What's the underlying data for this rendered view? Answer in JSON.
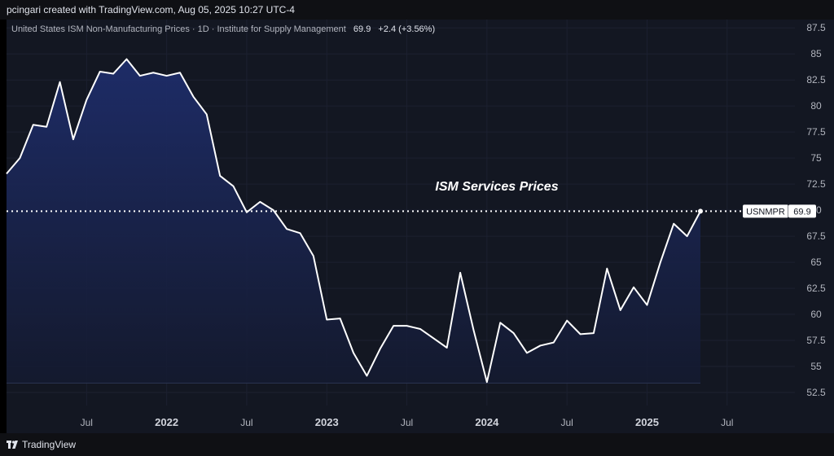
{
  "header": {
    "attribution": "pcingari created with TradingView.com, Aug 05, 2025 10:27 UTC-4"
  },
  "legend": {
    "title": "United States ISM Non-Manufacturing Prices · 1D · Institute for Supply Management",
    "last_value": "69.9",
    "change": "+2.4 (+3.56%)"
  },
  "footer": {
    "brand": "TradingView",
    "logo_icon": "tradingview-logo-icon"
  },
  "colors": {
    "line": "#ffffff",
    "area_top": "#1e2d6b",
    "area_bottom": "#141a30",
    "grid": "#1c2030",
    "axis_text": "#b2b5be"
  },
  "chart_data": {
    "type": "area",
    "title": "ISM Services Prices",
    "xlabel": "",
    "ylabel": "",
    "ylim": [
      51.25,
      88.3
    ],
    "y_ticks": [
      "87.5",
      "85",
      "82.5",
      "80",
      "77.5",
      "75",
      "72.5",
      "70",
      "67.5",
      "65",
      "62.5",
      "60",
      "57.5",
      "55",
      "52.5"
    ],
    "x_ticks": [
      {
        "label": "Jul",
        "date": "2021-07"
      },
      {
        "label": "2022",
        "date": "2022-01"
      },
      {
        "label": "Jul",
        "date": "2022-07"
      },
      {
        "label": "2023",
        "date": "2023-01"
      },
      {
        "label": "Jul",
        "date": "2023-07"
      },
      {
        "label": "2024",
        "date": "2024-01"
      },
      {
        "label": "Jul",
        "date": "2024-07"
      },
      {
        "label": "2025",
        "date": "2025-01"
      },
      {
        "label": "Jul",
        "date": "2025-07"
      }
    ],
    "x_range": [
      "2021-01",
      "2026-01"
    ],
    "series": [
      {
        "name": "USNMPR",
        "points": [
          {
            "date": "2021-01",
            "value": 73.5
          },
          {
            "date": "2021-02",
            "value": 75.0
          },
          {
            "date": "2021-03",
            "value": 78.2
          },
          {
            "date": "2021-04",
            "value": 78.0
          },
          {
            "date": "2021-05",
            "value": 82.3
          },
          {
            "date": "2021-06",
            "value": 76.8
          },
          {
            "date": "2021-07",
            "value": 80.6
          },
          {
            "date": "2021-08",
            "value": 83.3
          },
          {
            "date": "2021-09",
            "value": 83.1
          },
          {
            "date": "2021-10",
            "value": 84.5
          },
          {
            "date": "2021-11",
            "value": 82.9
          },
          {
            "date": "2021-12",
            "value": 83.2
          },
          {
            "date": "2022-01",
            "value": 82.9
          },
          {
            "date": "2022-02",
            "value": 83.2
          },
          {
            "date": "2022-03",
            "value": 80.9
          },
          {
            "date": "2022-04",
            "value": 79.2
          },
          {
            "date": "2022-05",
            "value": 73.3
          },
          {
            "date": "2022-06",
            "value": 72.3
          },
          {
            "date": "2022-07",
            "value": 69.8
          },
          {
            "date": "2022-08",
            "value": 70.8
          },
          {
            "date": "2022-09",
            "value": 70.0
          },
          {
            "date": "2022-10",
            "value": 68.2
          },
          {
            "date": "2022-11",
            "value": 67.8
          },
          {
            "date": "2022-12",
            "value": 65.6
          },
          {
            "date": "2023-01",
            "value": 59.5
          },
          {
            "date": "2023-02",
            "value": 59.6
          },
          {
            "date": "2023-03",
            "value": 56.3
          },
          {
            "date": "2023-04",
            "value": 54.1
          },
          {
            "date": "2023-05",
            "value": 56.7
          },
          {
            "date": "2023-06",
            "value": 58.9
          },
          {
            "date": "2023-07",
            "value": 58.9
          },
          {
            "date": "2023-08",
            "value": 58.6
          },
          {
            "date": "2023-09",
            "value": 57.7
          },
          {
            "date": "2023-10",
            "value": 56.8
          },
          {
            "date": "2023-11",
            "value": 64.0
          },
          {
            "date": "2023-12",
            "value": 58.5
          },
          {
            "date": "2024-01",
            "value": 53.5
          },
          {
            "date": "2024-02",
            "value": 59.2
          },
          {
            "date": "2024-03",
            "value": 58.2
          },
          {
            "date": "2024-04",
            "value": 56.3
          },
          {
            "date": "2024-05",
            "value": 57.0
          },
          {
            "date": "2024-06",
            "value": 57.3
          },
          {
            "date": "2024-07",
            "value": 59.4
          },
          {
            "date": "2024-08",
            "value": 58.1
          },
          {
            "date": "2024-09",
            "value": 58.2
          },
          {
            "date": "2024-10",
            "value": 64.4
          },
          {
            "date": "2024-11",
            "value": 60.4
          },
          {
            "date": "2024-12",
            "value": 62.6
          },
          {
            "date": "2025-01",
            "value": 60.9
          },
          {
            "date": "2025-02",
            "value": 65.0
          },
          {
            "date": "2025-03",
            "value": 68.7
          },
          {
            "date": "2025-04",
            "value": 67.5
          },
          {
            "date": "2025-05",
            "value": 69.9
          }
        ]
      }
    ],
    "last_value_label": {
      "name": "USNMPR",
      "value": "69.9"
    },
    "grid": true,
    "annotation": "ISM Services Prices"
  }
}
